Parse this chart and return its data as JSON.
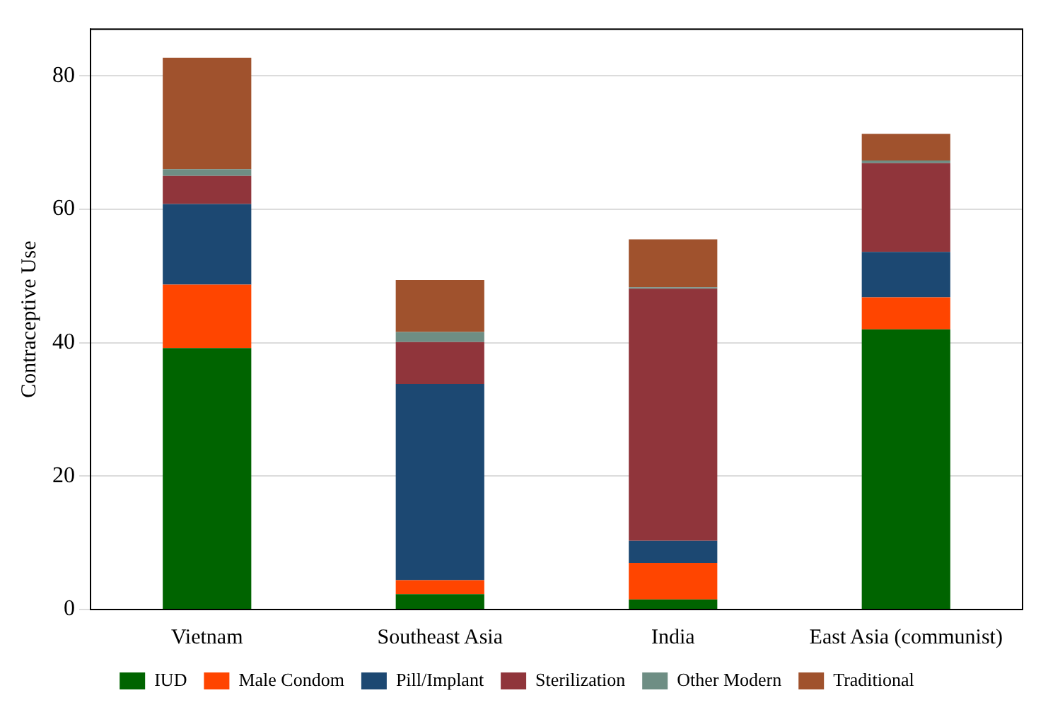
{
  "chart_data": {
    "type": "bar",
    "stacked": true,
    "ylabel": "Contraceptive Use",
    "categories": [
      "Vietnam",
      "Southeast Asia",
      "India",
      "East Asia (communist)"
    ],
    "series": [
      {
        "name": "IUD",
        "color": "#006400",
        "values": [
          39.2,
          2.3,
          1.5,
          42
        ]
      },
      {
        "name": "Male Condom",
        "color": "#ff4500",
        "values": [
          9.5,
          2.1,
          5.5,
          4.8
        ]
      },
      {
        "name": "Pill/Implant",
        "color": "#1c4872",
        "values": [
          12.1,
          29.4,
          3.3,
          6.8
        ]
      },
      {
        "name": "Sterilization",
        "color": "#90353b",
        "values": [
          4.2,
          6.3,
          37.8,
          13.3
        ]
      },
      {
        "name": "Other Modern",
        "color": "#6e8e84",
        "values": [
          1,
          1.5,
          0.2,
          0.4
        ]
      },
      {
        "name": "Traditional",
        "color": "#a0522d",
        "values": [
          16.7,
          7.8,
          7.2,
          4
        ]
      }
    ],
    "ylim": [
      0,
      87
    ],
    "yticks": [
      0,
      20,
      40,
      60,
      80
    ],
    "grid": "y",
    "legend": "bottom"
  }
}
